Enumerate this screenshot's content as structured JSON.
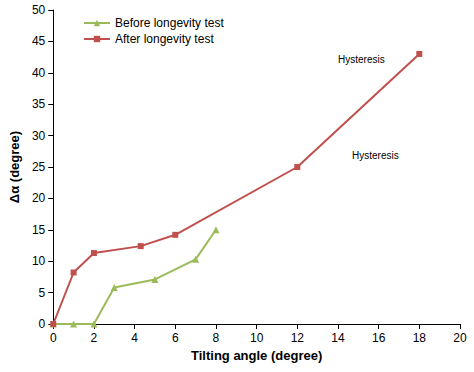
{
  "chart_data": {
    "type": "line",
    "x_label": "Tilting angle (degree)",
    "y_label": "Δα (degree)",
    "xlim": [
      0,
      20
    ],
    "xticks": [
      0,
      2,
      4,
      6,
      8,
      10,
      12,
      14,
      16,
      18,
      20
    ],
    "ylim": [
      0,
      50
    ],
    "yticks": [
      0,
      5,
      10,
      15,
      20,
      25,
      30,
      35,
      40,
      45,
      50
    ],
    "grid": false,
    "legend": "upper left",
    "annotations": [
      "Hysteresis",
      "Hysteresis"
    ],
    "series": [
      {
        "name": "Before longevity test",
        "color": "#9bbb59",
        "marker": "triangle",
        "line_style": "solid",
        "x": [
          0,
          1,
          2,
          3,
          5,
          7,
          8
        ],
        "values": [
          0,
          0,
          0,
          5.8,
          7.1,
          10.3,
          15
        ]
      },
      {
        "name": "After longevity test",
        "color": "#c0504d",
        "marker": "square",
        "line_style": "solid",
        "x": [
          0,
          1,
          2,
          4.3,
          6,
          12,
          18
        ],
        "values": [
          0,
          8.2,
          11.3,
          12.4,
          14.2,
          25,
          43
        ]
      }
    ]
  }
}
